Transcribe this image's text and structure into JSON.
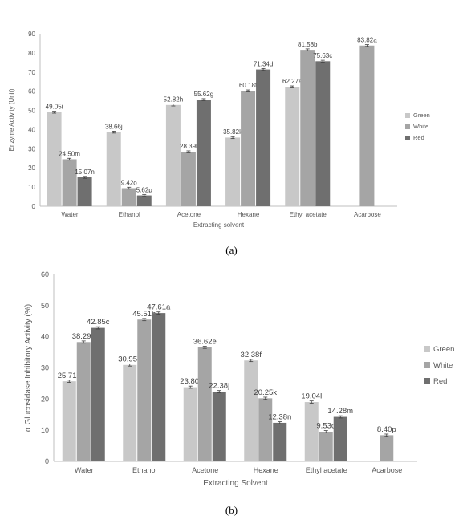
{
  "captions": {
    "a": "(a)",
    "b": "(b)"
  },
  "colors": {
    "Green": "#c8c8c8",
    "White": "#a5a5a5",
    "Red": "#6f6f6f"
  },
  "chart_data": [
    {
      "type": "bar",
      "categories": [
        "Water",
        "Ethanol",
        "Acetone",
        "Hexane",
        "Ethyl acetate",
        "Acarbose"
      ],
      "xlabel": "Extracting solvent",
      "ylabel": "Enzyme Activity (Unit)",
      "ylim": [
        0,
        90
      ],
      "yticks": [
        0,
        10,
        20,
        30,
        40,
        50,
        60,
        70,
        80,
        90
      ],
      "legend": "right",
      "series": [
        {
          "name": "Green",
          "values": [
            49.05,
            38.66,
            52.82,
            35.82,
            62.27,
            null
          ],
          "labels": [
            "49.05i",
            "38.66j",
            "52.82h",
            "35.82k",
            "62.27e",
            null
          ]
        },
        {
          "name": "White",
          "values": [
            24.5,
            9.42,
            28.39,
            60.18,
            81.58,
            83.82
          ],
          "labels": [
            "24.50m",
            "9.42o",
            "28.39l",
            "60.18f",
            "81.58b",
            "83.82a"
          ]
        },
        {
          "name": "Red",
          "values": [
            15.07,
            5.62,
            55.62,
            71.34,
            75.63,
            null
          ],
          "labels": [
            "15.07n",
            "5.62p",
            "55.62g",
            "71.34d",
            "75.63c",
            null
          ]
        }
      ]
    },
    {
      "type": "bar",
      "categories": [
        "Water",
        "Ethanol",
        "Acetone",
        "Hexane",
        "Ethyl acetate",
        "Acarbose"
      ],
      "xlabel": "Extracting Solvent",
      "ylabel": "α Glucosidase Inhibitory Activity (%)",
      "ylim": [
        0,
        60
      ],
      "yticks": [
        0,
        10,
        20,
        30,
        40,
        50,
        60
      ],
      "legend": "right",
      "series": [
        {
          "name": "Green",
          "values": [
            25.71,
            30.95,
            23.8,
            32.38,
            19.04,
            null
          ],
          "labels": [
            "25.71h",
            "30.95g",
            "23.80i",
            "32.38f",
            "19.04l",
            null
          ]
        },
        {
          "name": "White",
          "values": [
            38.29,
            45.51,
            36.62,
            20.25,
            9.53,
            8.4
          ],
          "labels": [
            "38.29d",
            "45.51b",
            "36.62e",
            "20.25k",
            "9.53o",
            "8.40p"
          ]
        },
        {
          "name": "Red",
          "values": [
            42.85,
            47.61,
            22.38,
            12.38,
            14.28,
            null
          ],
          "labels": [
            "42.85c",
            "47.61a",
            "22.38j",
            "12.38n",
            "14.28m",
            null
          ]
        }
      ]
    }
  ]
}
